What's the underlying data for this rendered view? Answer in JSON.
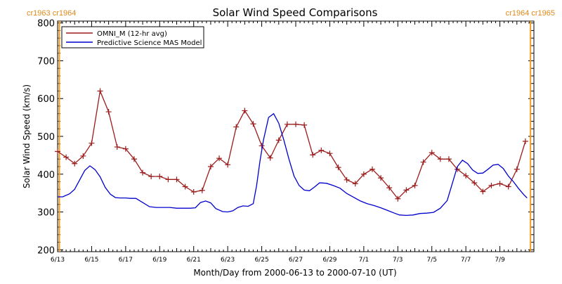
{
  "chart_data": {
    "type": "line",
    "title": "Solar Wind Speed Comparisons",
    "xlabel": "Month/Day from 2000-06-13 to 2000-07-10 (UT)",
    "ylabel": "Solar Wind Speed (km/s)",
    "ylim": [
      195,
      805
    ],
    "xlim": [
      0,
      28
    ],
    "y_ticks": [
      200,
      300,
      400,
      500,
      600,
      700,
      800
    ],
    "x_tick_labels": [
      {
        "day": 0,
        "label": "6/13"
      },
      {
        "day": 2,
        "label": "6/15"
      },
      {
        "day": 4,
        "label": "6/17"
      },
      {
        "day": 6,
        "label": "6/19"
      },
      {
        "day": 8,
        "label": "6/21"
      },
      {
        "day": 10,
        "label": "6/23"
      },
      {
        "day": 12,
        "label": "6/25"
      },
      {
        "day": 14,
        "label": "6/27"
      },
      {
        "day": 16,
        "label": "6/29"
      },
      {
        "day": 18,
        "label": "7/1"
      },
      {
        "day": 20,
        "label": "7/3"
      },
      {
        "day": 22,
        "label": "7/5"
      },
      {
        "day": 24,
        "label": "7/7"
      },
      {
        "day": 26,
        "label": "7/9"
      }
    ],
    "rotation_boundaries": [
      {
        "day": 0.1,
        "label": "cr1963 cr1964",
        "side": "left"
      },
      {
        "day": 27.8,
        "label": "cr1964 cr1965",
        "side": "right"
      }
    ],
    "legend_position": "top-left",
    "series": [
      {
        "name": "OMNI_M (12-hr avg)",
        "color": "#9b1c1c",
        "marker": "plus",
        "points": [
          [
            0.0,
            460
          ],
          [
            0.5,
            445
          ],
          [
            1.0,
            428
          ],
          [
            1.5,
            448
          ],
          [
            2.0,
            482
          ],
          [
            2.5,
            620
          ],
          [
            3.0,
            565
          ],
          [
            3.5,
            472
          ],
          [
            4.0,
            467
          ],
          [
            4.5,
            440
          ],
          [
            5.0,
            404
          ],
          [
            5.5,
            394
          ],
          [
            6.0,
            394
          ],
          [
            6.5,
            386
          ],
          [
            7.0,
            386
          ],
          [
            7.5,
            367
          ],
          [
            8.0,
            353
          ],
          [
            8.5,
            357
          ],
          [
            9.0,
            420
          ],
          [
            9.5,
            442
          ],
          [
            10.0,
            425
          ],
          [
            10.5,
            525
          ],
          [
            11.0,
            568
          ],
          [
            11.5,
            533
          ],
          [
            12.0,
            475
          ],
          [
            12.5,
            443
          ],
          [
            13.0,
            490
          ],
          [
            13.5,
            532
          ],
          [
            14.0,
            532
          ],
          [
            14.5,
            530
          ],
          [
            15.0,
            451
          ],
          [
            15.5,
            463
          ],
          [
            16.0,
            455
          ],
          [
            16.5,
            418
          ],
          [
            17.0,
            385
          ],
          [
            17.5,
            375
          ],
          [
            18.0,
            400
          ],
          [
            18.5,
            413
          ],
          [
            19.0,
            390
          ],
          [
            19.5,
            364
          ],
          [
            20.0,
            335
          ],
          [
            20.5,
            358
          ],
          [
            21.0,
            370
          ],
          [
            21.5,
            432
          ],
          [
            22.0,
            457
          ],
          [
            22.5,
            440
          ],
          [
            23.0,
            440
          ],
          [
            23.5,
            413
          ],
          [
            24.0,
            396
          ],
          [
            24.5,
            377
          ],
          [
            25.0,
            354
          ],
          [
            25.5,
            370
          ],
          [
            26.0,
            375
          ],
          [
            26.5,
            367
          ],
          [
            27.0,
            413
          ],
          [
            27.5,
            487
          ]
        ]
      },
      {
        "name": "Predictive Science MAS Model",
        "color": "#0000cc",
        "marker": "none",
        "points": [
          [
            0.0,
            340
          ],
          [
            0.3,
            340
          ],
          [
            0.7,
            348
          ],
          [
            1.0,
            360
          ],
          [
            1.3,
            385
          ],
          [
            1.6,
            410
          ],
          [
            1.9,
            422
          ],
          [
            2.2,
            412
          ],
          [
            2.5,
            393
          ],
          [
            2.8,
            365
          ],
          [
            3.1,
            347
          ],
          [
            3.4,
            338
          ],
          [
            3.7,
            337
          ],
          [
            4.0,
            337
          ],
          [
            4.3,
            336
          ],
          [
            4.6,
            336
          ],
          [
            5.0,
            325
          ],
          [
            5.4,
            314
          ],
          [
            5.8,
            312
          ],
          [
            6.2,
            312
          ],
          [
            6.6,
            312
          ],
          [
            7.0,
            310
          ],
          [
            7.4,
            310
          ],
          [
            7.8,
            310
          ],
          [
            8.1,
            311
          ],
          [
            8.4,
            325
          ],
          [
            8.7,
            329
          ],
          [
            9.0,
            324
          ],
          [
            9.3,
            309
          ],
          [
            9.7,
            301
          ],
          [
            10.0,
            300
          ],
          [
            10.3,
            303
          ],
          [
            10.6,
            312
          ],
          [
            10.9,
            316
          ],
          [
            11.2,
            315
          ],
          [
            11.5,
            322
          ],
          [
            11.7,
            370
          ],
          [
            11.9,
            435
          ],
          [
            12.1,
            490
          ],
          [
            12.4,
            550
          ],
          [
            12.7,
            560
          ],
          [
            13.0,
            535
          ],
          [
            13.3,
            490
          ],
          [
            13.6,
            440
          ],
          [
            13.9,
            395
          ],
          [
            14.2,
            370
          ],
          [
            14.5,
            358
          ],
          [
            14.8,
            356
          ],
          [
            15.1,
            366
          ],
          [
            15.4,
            377
          ],
          [
            15.8,
            376
          ],
          [
            16.2,
            370
          ],
          [
            16.6,
            363
          ],
          [
            17.0,
            349
          ],
          [
            17.4,
            339
          ],
          [
            17.8,
            329
          ],
          [
            18.2,
            322
          ],
          [
            18.6,
            317
          ],
          [
            19.0,
            311
          ],
          [
            19.4,
            304
          ],
          [
            19.8,
            297
          ],
          [
            20.1,
            292
          ],
          [
            20.5,
            291
          ],
          [
            20.9,
            292
          ],
          [
            21.3,
            296
          ],
          [
            21.7,
            297
          ],
          [
            22.1,
            299
          ],
          [
            22.5,
            310
          ],
          [
            22.9,
            330
          ],
          [
            23.2,
            375
          ],
          [
            23.5,
            420
          ],
          [
            23.8,
            437
          ],
          [
            24.1,
            428
          ],
          [
            24.4,
            411
          ],
          [
            24.7,
            402
          ],
          [
            25.0,
            403
          ],
          [
            25.3,
            413
          ],
          [
            25.6,
            424
          ],
          [
            25.9,
            426
          ],
          [
            26.2,
            415
          ],
          [
            26.5,
            395
          ],
          [
            26.8,
            380
          ],
          [
            27.1,
            362
          ],
          [
            27.4,
            346
          ],
          [
            27.6,
            337
          ]
        ]
      }
    ]
  }
}
